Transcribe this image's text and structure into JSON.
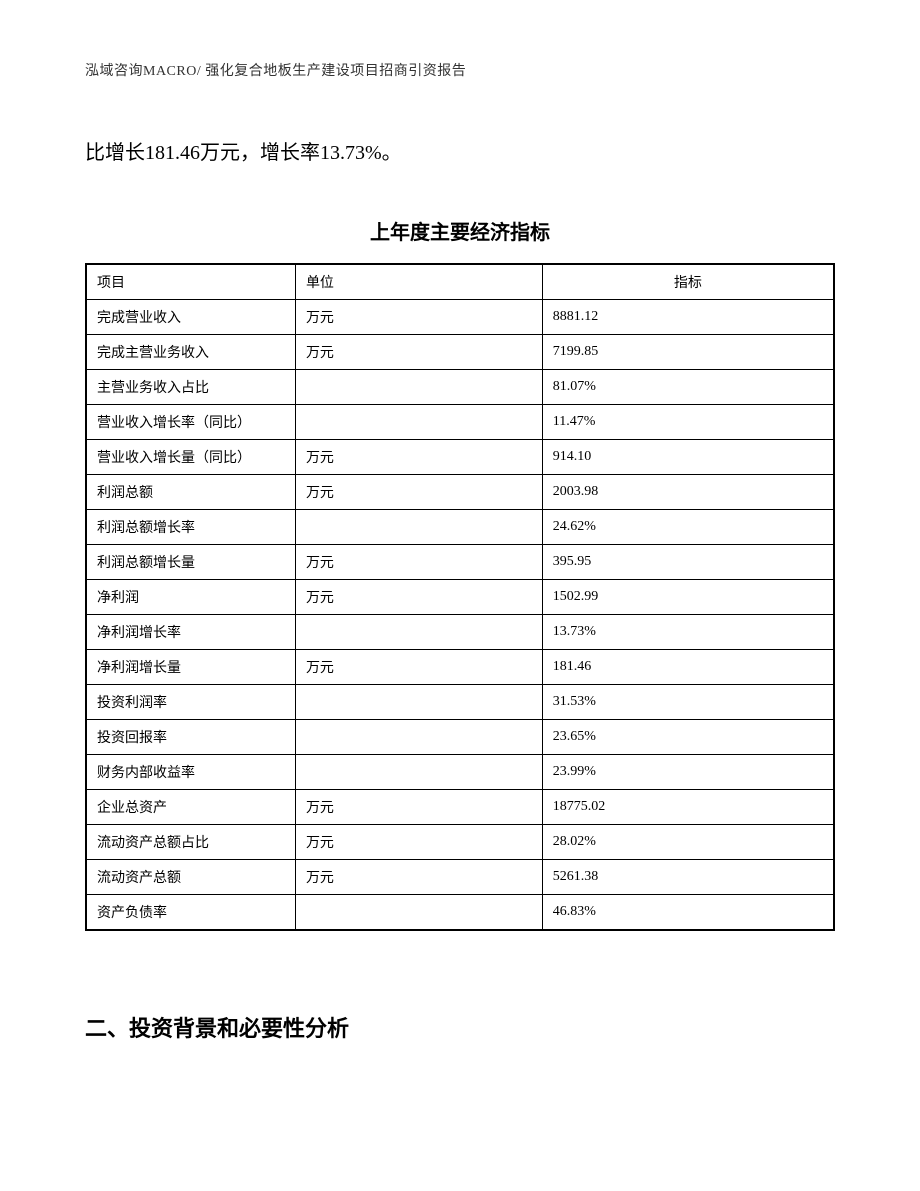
{
  "header": {
    "text": "泓域咨询MACRO/ 强化复合地板生产建设项目招商引资报告"
  },
  "body": {
    "paragraph": "比增长181.46万元，增长率13.73%。"
  },
  "table": {
    "title": "上年度主要经济指标",
    "columns": [
      "项目",
      "单位",
      "指标"
    ],
    "rows": [
      [
        "完成营业收入",
        "万元",
        "8881.12"
      ],
      [
        "完成主营业务收入",
        "万元",
        "7199.85"
      ],
      [
        "主营业务收入占比",
        "",
        "81.07%"
      ],
      [
        "营业收入增长率（同比）",
        "",
        "11.47%"
      ],
      [
        "营业收入增长量（同比）",
        "万元",
        "914.10"
      ],
      [
        "利润总额",
        "万元",
        "2003.98"
      ],
      [
        "利润总额增长率",
        "",
        "24.62%"
      ],
      [
        "利润总额增长量",
        "万元",
        "395.95"
      ],
      [
        "净利润",
        "万元",
        "1502.99"
      ],
      [
        "净利润增长率",
        "",
        "13.73%"
      ],
      [
        "净利润增长量",
        "万元",
        "181.46"
      ],
      [
        "投资利润率",
        "",
        "31.53%"
      ],
      [
        "投资回报率",
        "",
        "23.65%"
      ],
      [
        "财务内部收益率",
        "",
        "23.99%"
      ],
      [
        "企业总资产",
        "万元",
        "18775.02"
      ],
      [
        "流动资产总额占比",
        "万元",
        "28.02%"
      ],
      [
        "流动资产总额",
        "万元",
        "5261.38"
      ],
      [
        "资产负债率",
        "",
        "46.83%"
      ]
    ]
  },
  "section": {
    "heading": "二、投资背景和必要性分析"
  }
}
